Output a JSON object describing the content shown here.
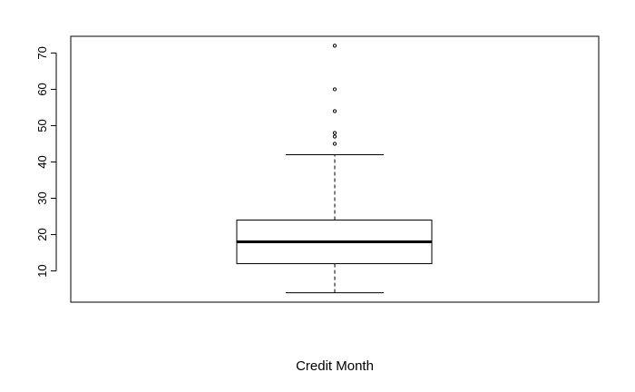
{
  "chart_data": {
    "type": "boxplot",
    "xlabel": "Credit Month",
    "ylabel": "",
    "title": "",
    "ylim": [
      1.4,
      74.6
    ],
    "y_ticks": [
      10,
      20,
      30,
      40,
      50,
      60,
      70
    ],
    "grid": false,
    "series": [
      {
        "whisker_low": 4,
        "q1": 12,
        "median": 18,
        "q3": 24,
        "whisker_high": 42,
        "outliers": [
          45,
          47,
          48,
          54,
          60,
          72
        ]
      }
    ],
    "colors": {
      "stroke": "#000000",
      "background": "#ffffff"
    }
  }
}
